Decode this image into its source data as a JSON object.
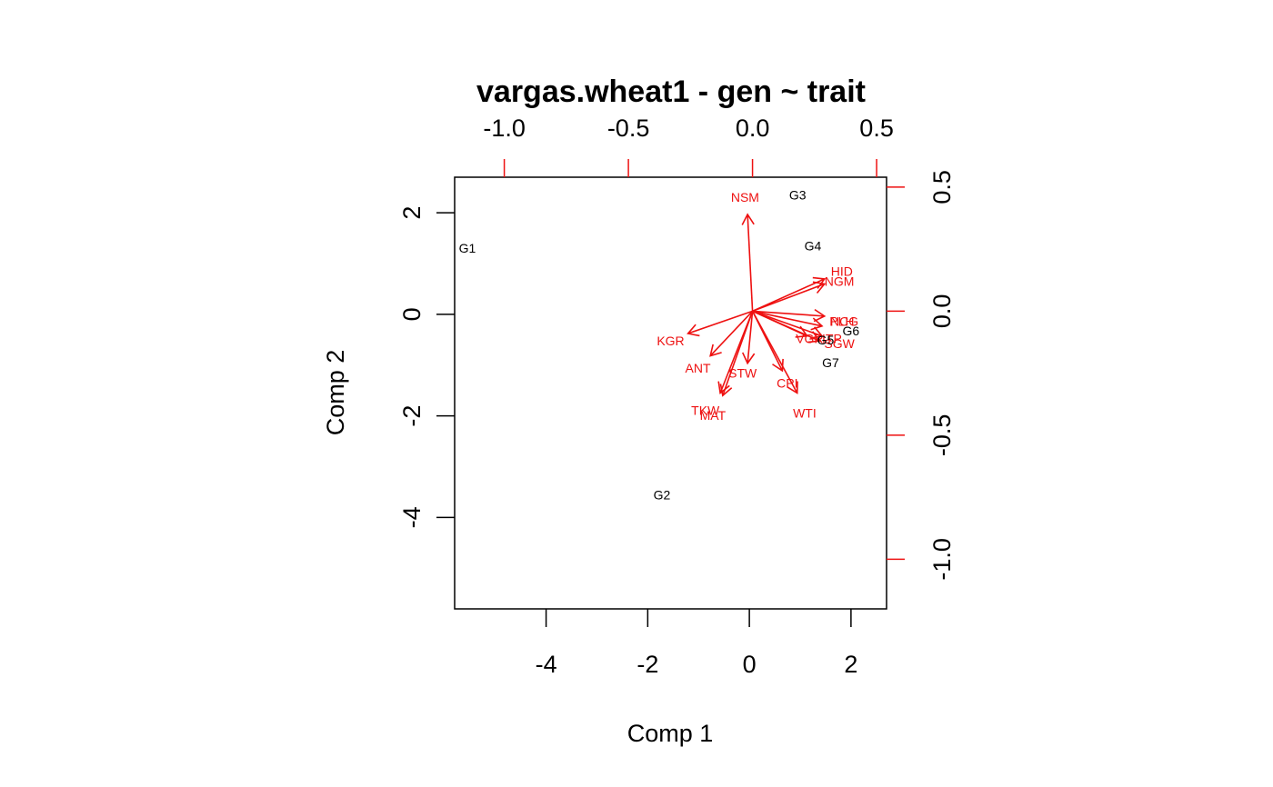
{
  "chart_data": {
    "type": "scatter",
    "subtype": "biplot",
    "title": "vargas.wheat1 - gen ~ trait",
    "xlabel": "Comp 1",
    "ylabel": "Comp 2",
    "primary_axes": {
      "xlim": [
        -5.8,
        2.7
      ],
      "ylim": [
        -5.8,
        2.7
      ],
      "x_ticks": [
        -4,
        -2,
        0,
        2
      ],
      "y_ticks": [
        2,
        0,
        -2,
        -4
      ],
      "color": "#000000"
    },
    "secondary_axes": {
      "xlim": [
        -1.2,
        0.54
      ],
      "ylim": [
        -1.2,
        0.54
      ],
      "x_ticks": [
        -1.0,
        -0.5,
        0.0,
        0.5
      ],
      "x_tick_labels": [
        "-1.0",
        "-0.5",
        "0.0",
        "0.5"
      ],
      "y_ticks": [
        0.5,
        0.0,
        -0.5,
        -1.0
      ],
      "y_tick_labels": [
        "0.5",
        "0.0",
        "-0.5",
        "-1.0"
      ],
      "tick_color": "#ee1111"
    },
    "genotypes": {
      "color": "#000000",
      "points": [
        {
          "label": "G1",
          "x": -5.55,
          "y": 1.3
        },
        {
          "label": "G2",
          "x": -1.72,
          "y": -3.55
        },
        {
          "label": "G3",
          "x": 0.95,
          "y": 2.35
        },
        {
          "label": "G4",
          "x": 1.25,
          "y": 1.35
        },
        {
          "label": "G5",
          "x": 1.5,
          "y": -0.5
        },
        {
          "label": "G6",
          "x": 2.0,
          "y": -0.32
        },
        {
          "label": "G7",
          "x": 1.6,
          "y": -0.95
        }
      ]
    },
    "traits": {
      "color": "#ee1111",
      "arrows": [
        {
          "label": "NSM",
          "x": -0.02,
          "y": 0.39,
          "lx": -0.03,
          "ly": 0.46
        },
        {
          "label": "HID",
          "x": 0.29,
          "y": 0.13,
          "lx": 0.36,
          "ly": 0.16
        },
        {
          "label": "NGM",
          "x": 0.29,
          "y": 0.11,
          "lx": 0.35,
          "ly": 0.12
        },
        {
          "label": "PLH",
          "x": 0.29,
          "y": -0.02,
          "lx": 0.36,
          "ly": -0.04
        },
        {
          "label": "NCG",
          "x": 0.28,
          "y": -0.06,
          "lx": 0.37,
          "ly": -0.04
        },
        {
          "label": "VGR",
          "x": 0.22,
          "y": -0.1,
          "lx": 0.23,
          "ly": -0.11
        },
        {
          "label": "ITP",
          "x": 0.28,
          "y": -0.1,
          "lx": 0.32,
          "ly": -0.11
        },
        {
          "label": "SGW",
          "x": 0.27,
          "y": -0.12,
          "lx": 0.35,
          "ly": -0.13
        },
        {
          "label": "CPI",
          "x": 0.12,
          "y": -0.24,
          "lx": 0.14,
          "ly": -0.29
        },
        {
          "label": "WTI",
          "x": 0.18,
          "y": -0.33,
          "lx": 0.21,
          "ly": -0.41
        },
        {
          "label": "STW",
          "x": -0.02,
          "y": -0.21,
          "lx": -0.04,
          "ly": -0.25
        },
        {
          "label": "ANT",
          "x": -0.17,
          "y": -0.18,
          "lx": -0.22,
          "ly": -0.23
        },
        {
          "label": "KGR",
          "x": -0.26,
          "y": -0.09,
          "lx": -0.33,
          "ly": -0.12
        },
        {
          "label": "TKW",
          "x": -0.13,
          "y": -0.33,
          "lx": -0.19,
          "ly": -0.4
        },
        {
          "label": "MAT",
          "x": -0.12,
          "y": -0.34,
          "lx": -0.16,
          "ly": -0.42
        }
      ]
    }
  }
}
